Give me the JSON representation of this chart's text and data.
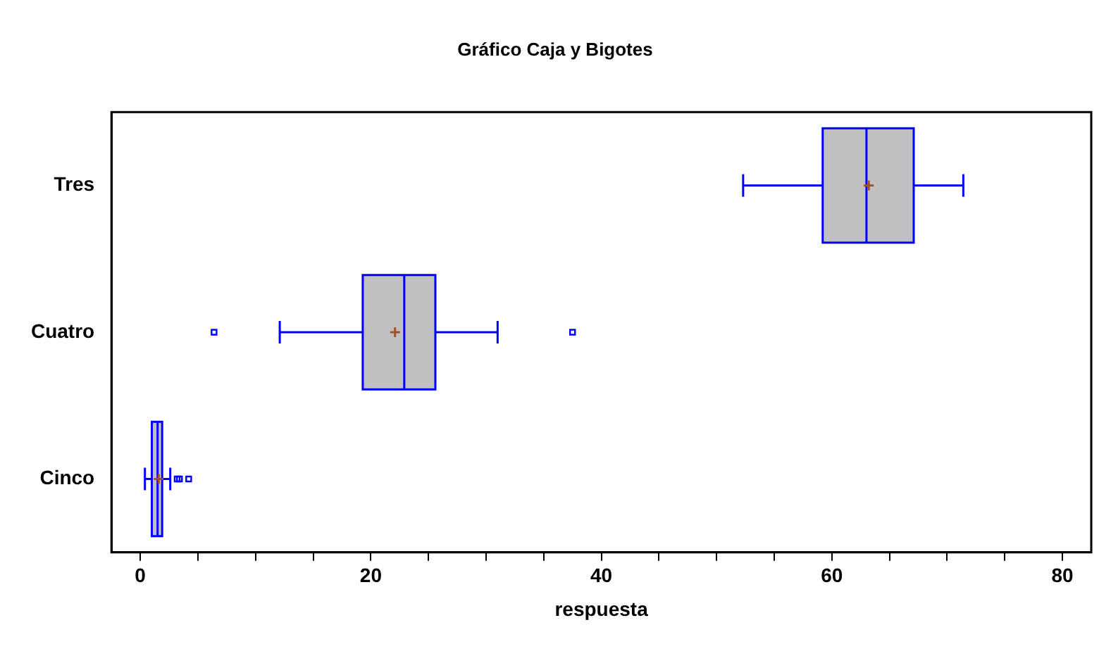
{
  "chart_data": {
    "type": "box",
    "orientation": "horizontal",
    "title": "Gráfico Caja y Bigotes",
    "xlabel": "respuesta",
    "categories": [
      "Tres",
      "Cuatro",
      "Cinco"
    ],
    "series": [
      {
        "color": "#c0c0c0",
        "boxes": [
          {
            "low": 52.3,
            "q1": 59.2,
            "median": 63.0,
            "q3": 67.1,
            "high": 71.4,
            "mean": 63.2
          },
          {
            "low": 12.1,
            "q1": 19.3,
            "median": 22.9,
            "q3": 25.6,
            "high": 31.0,
            "mean": 22.1,
            "outliers": [
              6.4,
              37.5
            ]
          },
          {
            "low": 0.4,
            "q1": 1.0,
            "median": 1.5,
            "q3": 1.9,
            "high": 2.6,
            "mean": 1.6,
            "outliers": [
              3.2,
              3.4,
              4.2
            ]
          }
        ]
      }
    ],
    "xlim": [
      -2.5,
      82.5
    ],
    "xticks": [
      0,
      {
        "value": 5,
        "label": null
      },
      {
        "value": 10,
        "label": null
      },
      {
        "value": 15,
        "label": null
      },
      20,
      {
        "value": 25,
        "label": null
      },
      {
        "value": 30,
        "label": null
      },
      {
        "value": 35,
        "label": null
      },
      40,
      {
        "value": 45,
        "label": null
      },
      {
        "value": 50,
        "label": null
      },
      {
        "value": 55,
        "label": null
      },
      60,
      {
        "value": 65,
        "label": null
      },
      {
        "value": 70,
        "label": null
      },
      {
        "value": 75,
        "label": null
      },
      80
    ],
    "grid": false
  }
}
